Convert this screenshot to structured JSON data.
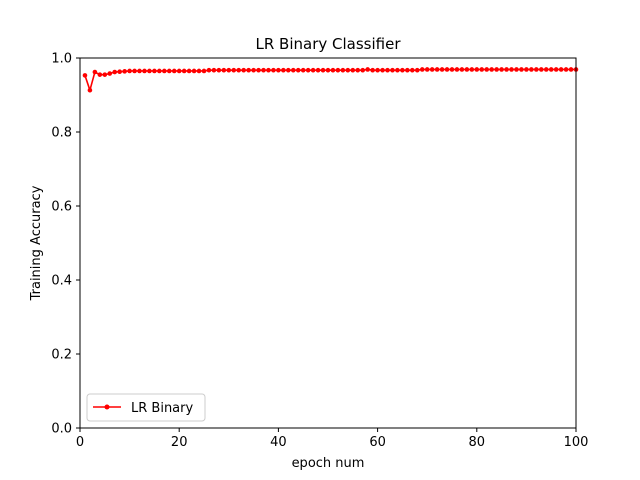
{
  "chart_data": {
    "type": "line",
    "title": "LR Binary Classifier",
    "xlabel": "epoch num",
    "ylabel": "Training Accuracy",
    "xlim": [
      0,
      100
    ],
    "ylim": [
      0.0,
      1.0
    ],
    "xticks": [
      "0",
      "20",
      "40",
      "60",
      "80",
      "100"
    ],
    "yticks": [
      "0.0",
      "0.2",
      "0.4",
      "0.6",
      "0.8",
      "1.0"
    ],
    "grid": false,
    "legend_position": "lower-left",
    "series": [
      {
        "name": "LR Binary",
        "color": "#ff0000",
        "marker": "dot",
        "x": [
          1,
          2,
          3,
          4,
          5,
          6,
          7,
          8,
          9,
          10,
          11,
          12,
          13,
          14,
          15,
          16,
          17,
          18,
          19,
          20,
          21,
          22,
          23,
          24,
          25,
          26,
          27,
          28,
          29,
          30,
          31,
          32,
          33,
          34,
          35,
          36,
          37,
          38,
          39,
          40,
          41,
          42,
          43,
          44,
          45,
          46,
          47,
          48,
          49,
          50,
          51,
          52,
          53,
          54,
          55,
          56,
          57,
          58,
          59,
          60,
          61,
          62,
          63,
          64,
          65,
          66,
          67,
          68,
          69,
          70,
          71,
          72,
          73,
          74,
          75,
          76,
          77,
          78,
          79,
          80,
          81,
          82,
          83,
          84,
          85,
          86,
          87,
          88,
          89,
          90,
          91,
          92,
          93,
          94,
          95,
          96,
          97,
          98,
          99,
          100
        ],
        "values": [
          0.953,
          0.913,
          0.962,
          0.955,
          0.955,
          0.958,
          0.962,
          0.963,
          0.964,
          0.965,
          0.965,
          0.965,
          0.965,
          0.965,
          0.965,
          0.965,
          0.965,
          0.965,
          0.965,
          0.965,
          0.965,
          0.965,
          0.965,
          0.965,
          0.965,
          0.967,
          0.967,
          0.967,
          0.967,
          0.967,
          0.967,
          0.967,
          0.967,
          0.967,
          0.967,
          0.967,
          0.967,
          0.967,
          0.967,
          0.967,
          0.967,
          0.967,
          0.967,
          0.967,
          0.967,
          0.967,
          0.967,
          0.967,
          0.967,
          0.967,
          0.967,
          0.967,
          0.967,
          0.967,
          0.967,
          0.967,
          0.967,
          0.969,
          0.967,
          0.967,
          0.967,
          0.967,
          0.967,
          0.967,
          0.967,
          0.967,
          0.967,
          0.967,
          0.969,
          0.969,
          0.969,
          0.969,
          0.969,
          0.969,
          0.969,
          0.969,
          0.969,
          0.969,
          0.969,
          0.969,
          0.969,
          0.969,
          0.969,
          0.969,
          0.969,
          0.969,
          0.969,
          0.969,
          0.969,
          0.969,
          0.969,
          0.969,
          0.969,
          0.969,
          0.969,
          0.969,
          0.969,
          0.969,
          0.969,
          0.969
        ]
      }
    ]
  }
}
